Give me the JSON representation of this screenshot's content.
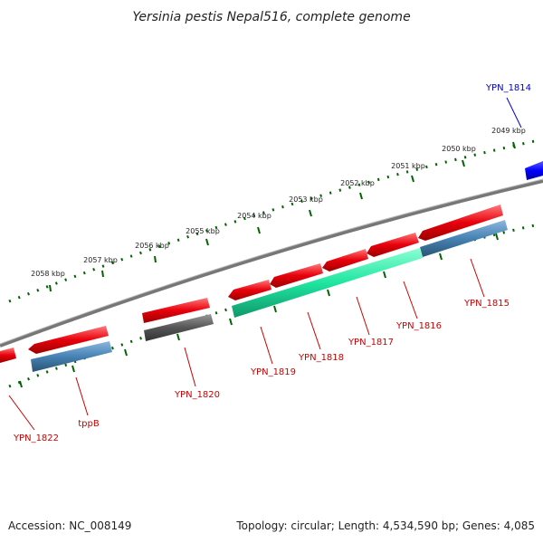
{
  "title": "Yersinia pestis Nepal516, complete genome",
  "footer": {
    "accession": "Accession: NC_008149",
    "topology": "Topology: circular; Length: 4,534,590 bp; Genes: 4,085"
  },
  "kbp_labels": [
    "2049 kbp",
    "2050 kbp",
    "2051 kbp",
    "2052 kbp",
    "2053 kbp",
    "2054 kbp",
    "2055 kbp",
    "2056 kbp",
    "2057 kbp",
    "2058 kbp"
  ],
  "genes": [
    {
      "id": "YPN_1814",
      "color": "#0000cc"
    },
    {
      "id": "YPN_1815",
      "color": "#cc0000"
    },
    {
      "id": "YPN_1816",
      "color": "#cc0000"
    },
    {
      "id": "YPN_1817",
      "color": "#cc0000"
    },
    {
      "id": "YPN_1818",
      "color": "#cc0000"
    },
    {
      "id": "YPN_1819",
      "color": "#cc0000"
    },
    {
      "id": "YPN_1820",
      "color": "#cc0000"
    },
    {
      "id": "tppB",
      "color": "#cc0000"
    },
    {
      "id": "YPN_1822",
      "color": "#cc0000"
    }
  ],
  "colors": {
    "cds_red": "#e8000b",
    "cds_blue": "#0000ff",
    "track_steel": "#4682b4",
    "track_green": "#1fe5a0",
    "track_gray": "#555555",
    "backbone": "#777777",
    "tick_green": "#006400"
  }
}
